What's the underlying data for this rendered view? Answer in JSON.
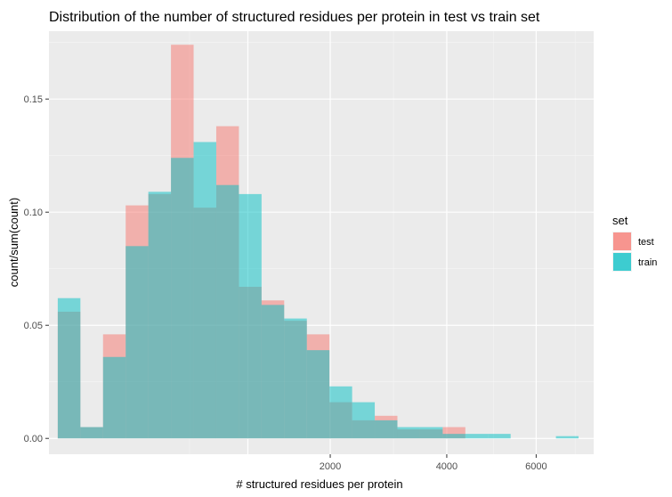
{
  "chart_data": {
    "type": "bar",
    "title": "Distribution of the number of structured residues per protein in test vs train set",
    "xlabel": "# structured residues per protein",
    "ylabel": "count/sum(count)",
    "x_scale": "sqrt",
    "xlim": [
      0,
      7500
    ],
    "ylim": [
      -0.007,
      0.18
    ],
    "x_ticks": [
      2000,
      4000,
      6000
    ],
    "x_tick_labels": [
      "2000",
      "4000",
      "6000"
    ],
    "y_ticks": [
      0,
      0.05,
      0.1,
      0.15
    ],
    "y_tick_labels": [
      "0.00",
      "0.05",
      "0.10",
      "0.15"
    ],
    "grid": true,
    "legend": {
      "title": "set",
      "position": "right",
      "entries": [
        "test",
        "train"
      ]
    },
    "colors": {
      "test": "#F8766D",
      "train": "#00BFC4",
      "panel": "#EBEBEB",
      "grid": "#FFFFFF"
    },
    "bin_edges_sqrt": [
      1.4,
      5.0,
      8.6,
      12.2,
      15.8,
      19.4,
      23.0,
      26.6,
      30.2,
      33.8,
      37.4,
      41.0,
      44.6,
      48.2,
      51.8,
      55.4,
      59.0,
      62.6,
      66.2,
      69.8,
      73.4,
      77.0,
      80.6,
      84.2
    ],
    "series": [
      {
        "name": "test",
        "values": [
          0.056,
          0.005,
          0.046,
          0.103,
          0.108,
          0.174,
          0.102,
          0.138,
          0.067,
          0.061,
          0.052,
          0.046,
          0.016,
          0.008,
          0.01,
          0.004,
          0.004,
          0.005,
          0.0,
          0.0,
          0.0,
          0.0,
          0.0
        ]
      },
      {
        "name": "train",
        "values": [
          0.062,
          0.005,
          0.036,
          0.085,
          0.109,
          0.124,
          0.131,
          0.112,
          0.108,
          0.059,
          0.053,
          0.039,
          0.023,
          0.016,
          0.008,
          0.005,
          0.005,
          0.002,
          0.002,
          0.002,
          0.0,
          0.0,
          0.001
        ]
      }
    ]
  }
}
